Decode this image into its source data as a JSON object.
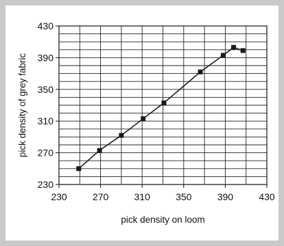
{
  "chart_data": {
    "type": "line",
    "title": "",
    "xlabel": "pick density on loom",
    "ylabel": "pick density of grey fabric",
    "xlim": [
      230,
      430
    ],
    "ylim": [
      230,
      430
    ],
    "x_ticks": [
      230,
      270,
      310,
      350,
      390,
      430
    ],
    "y_ticks": [
      230,
      270,
      310,
      350,
      390,
      430
    ],
    "x_tick_labels": [
      "230",
      "270",
      "310",
      "350",
      "390",
      "430"
    ],
    "y_tick_labels": [
      "230",
      "270",
      "310",
      "350",
      "390",
      "430"
    ],
    "grid": true,
    "marker": "square",
    "series_color": "#1a1a1a",
    "series": [
      {
        "x": [
          249,
          269,
          290,
          311,
          331,
          366,
          388,
          398,
          407
        ],
        "y": [
          250,
          273,
          292,
          313,
          333,
          372,
          393,
          403,
          399
        ]
      }
    ]
  }
}
